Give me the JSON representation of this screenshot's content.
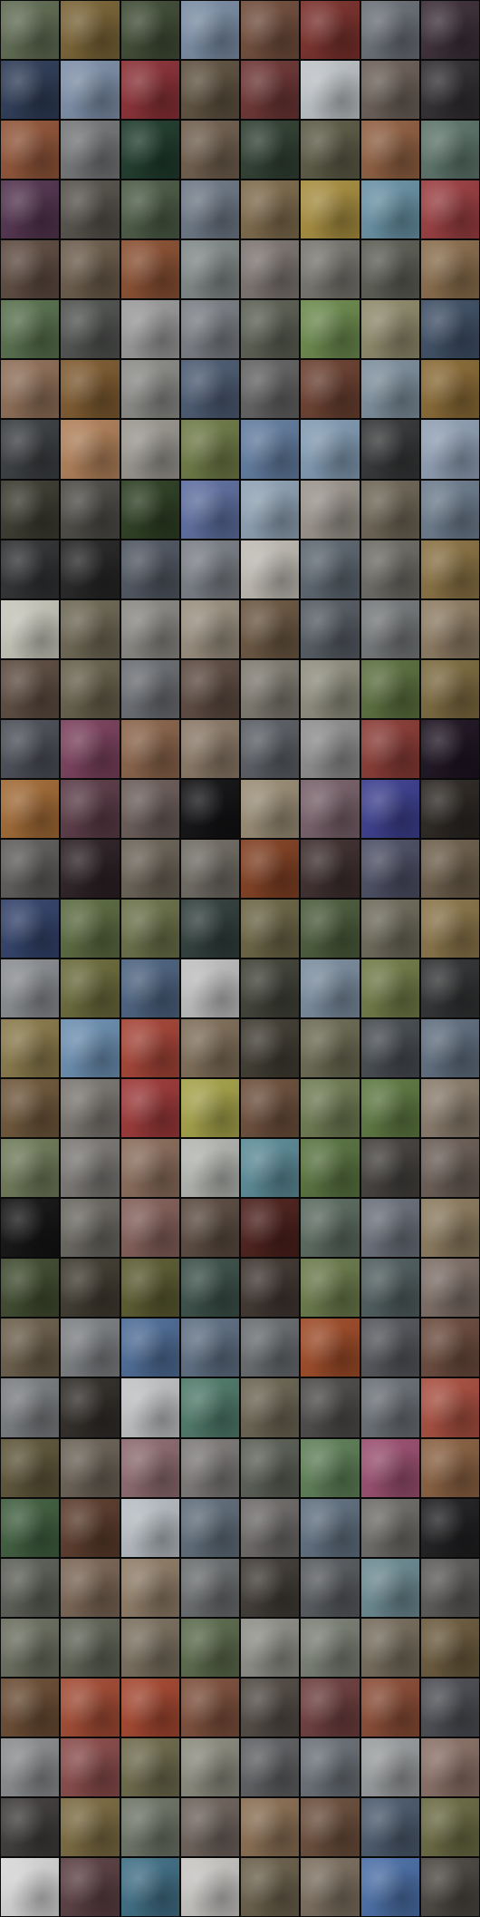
{
  "grid": {
    "columns": 8,
    "rows": 32,
    "palette": [
      "#5f6b52",
      "#7a6334",
      "#3e4b34",
      "#7a8da5",
      "#704c3a",
      "#7a2f2a",
      "#6a6f77",
      "#3b2d37",
      "#2d3b57",
      "#7d8fa9",
      "#8a2f35",
      "#5e513f",
      "#6c3433",
      "#bfc4c8",
      "#6b5f57",
      "#302d30",
      "#915437",
      "#747677",
      "#1d3a2b",
      "#6f5e4d",
      "#2f3f31",
      "#5b5a45",
      "#905f40",
      "#5c746a",
      "#52324e",
      "#55514a",
      "#4a5a44",
      "#6d7886",
      "#7e6a4b",
      "#a88e3e",
      "#6892a6",
      "#9b3d3f",
      "#5d4a3f",
      "#6b5b4a",
      "#8a4f30",
      "#808988",
      "#7c7471",
      "#77756f",
      "#5c5d54",
      "#8a6d4b",
      "#57704c",
      "#505250",
      "#9a9a9a",
      "#7a7e84",
      "#5b5f52",
      "#6b8a4c",
      "#8f8a6b",
      "#3e4f66",
      "#8f6e56",
      "#7e5a2e",
      "#8b8b88",
      "#4b5a72",
      "#626262",
      "#6a3f2f",
      "#7d8f9d",
      "#8a6a34",
      "#3a3d40",
      "#b18058",
      "#9a978f",
      "#6e7a45",
      "#617ca0",
      "#819bb3",
      "#343536",
      "#90a0b5",
      "#3a3a2f",
      "#4b4a45",
      "#2c3e22",
      "#5d6ea0",
      "#8fa2b5",
      "#9a948c",
      "#6d6555",
      "#6c7c8d",
      "#2f3032",
      "#232423",
      "#4f5661",
      "#7a7f86",
      "#c0bcb4",
      "#5c6670",
      "#6c6b65",
      "#8a7142",
      "#c7c7bb",
      "#6d6753",
      "#8a8883",
      "#9a8f7f",
      "#6a5640",
      "#555b63",
      "#75787a",
      "#8e7c62",
      "#5c4b3f",
      "#66604a",
      "#6a6d72",
      "#5c4a40",
      "#7e7a70",
      "#8f8e7e",
      "#5a6f3d",
      "#7c6a3e",
      "#4b4e57",
      "#7a3f5b",
      "#8a6349",
      "#8a7866",
      "#5a5e64",
      "#8e8e8e",
      "#8a3a34",
      "#1c1220",
      "#a26a34",
      "#5a3a46",
      "#6a5c58",
      "#101012",
      "#9a8d75",
      "#776069",
      "#3b3e8f",
      "#2a2521",
      "#5e5c5a",
      "#2b1f23",
      "#6a6256",
      "#6f6b63",
      "#813f21",
      "#3d2d2d",
      "#4b4d63",
      "#6d5e4a",
      "#31416a",
      "#5a6a3f",
      "#6a7048",
      "#2f3e3b",
      "#6b6444",
      "#4a5b3a",
      "#6d6a5a",
      "#8a7448",
      "#8a8d91",
      "#6a6a3a",
      "#4b6280",
      "#c0c0c0",
      "#3f4136",
      "#7a8c9e",
      "#6f7a45",
      "#303132",
      "#8a7a4a",
      "#6b8fb2",
      "#a64335",
      "#7f6e58",
      "#3f3b31",
      "#6b6a52",
      "#464b50",
      "#5f6e7f",
      "#6e5639",
      "#7a7671",
      "#9d3737",
      "#a6a348",
      "#6c4e3a",
      "#6f7b52",
      "#5d7840",
      "#8a7c6c",
      "#6f7a58",
      "#7b7875",
      "#8a6c5a",
      "#b4b7b2",
      "#5b8b98",
      "#58733f",
      "#43403d",
      "#6b5e56",
      "#121212",
      "#6a6761",
      "#835e58",
      "#5a4a3f",
      "#4b1e1a",
      "#5a6a5f",
      "#6a6f7a",
      "#8c7b5e",
      "#3f4a2e",
      "#3f3a2f",
      "#5a5a2f",
      "#3a4f47",
      "#3f352f",
      "#6a7a4a",
      "#4f5d5e",
      "#7d6e66",
      "#6b5e4a",
      "#7c7f82",
      "#4d6c97",
      "#5e6f83",
      "#686c6f",
      "#9e4a26",
      "#53555a",
      "#6b4a3c",
      "#7a7d80",
      "#2f2b27",
      "#c1c3c5",
      "#4e7a6a",
      "#6b6452",
      "#4c4a48",
      "#6a6f75",
      "#a94e3e",
      "#5e5538",
      "#6a6155",
      "#8d6a6f",
      "#7d7a78",
      "#5a5f55",
      "#5d7f56",
      "#9a4e6f",
      "#8a6040",
      "#3f5e3e",
      "#5a3a2a",
      "#b8bec4",
      "#5f6d7a",
      "#6d6a68",
      "#5f6f7f",
      "#6e6c68",
      "#1e1d1f",
      "#5c5f56",
      "#7a6554",
      "#8f7c66",
      "#6a6d6f",
      "#3f3a34",
      "#575a5e",
      "#6b8a92",
      "#5b5a58",
      "#6a6e5e",
      "#5f6355",
      "#7a6f5e",
      "#5a6a4b",
      "#8f8f88",
      "#7a7f74",
      "#766c5c",
      "#6b5a3c",
      "#6a4b32",
      "#a34a32",
      "#a5462e",
      "#7d4e3a",
      "#514a43",
      "#6d3d3d",
      "#8a4b34",
      "#4b4c52",
      "#8a8c8e",
      "#8a4a4a",
      "#6d6a4b",
      "#8b8b7e",
      "#5e5f62",
      "#6a7077",
      "#9a9d9f",
      "#8a7066",
      "#3e3b3a",
      "#7a6a3f",
      "#6d7466",
      "#6e625b",
      "#8a6e52",
      "#6a4d3a",
      "#4b5a6d",
      "#6a6a42",
      "#d8d8d8",
      "#5a3e42",
      "#3f6f86",
      "#c9c7c4",
      "#6a5f4a",
      "#7b6e5e",
      "#4a6fa8",
      "#4a4640"
    ]
  }
}
